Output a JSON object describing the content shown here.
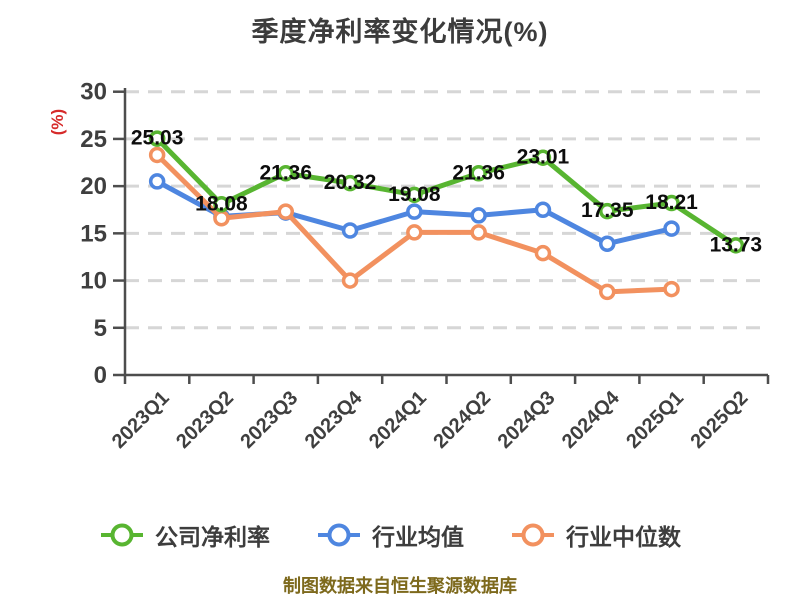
{
  "header": {
    "title": "季度净利率变化情况(%)"
  },
  "y_axis": {
    "unit_label": "(%)",
    "unit_color": "#d62a2a"
  },
  "footer": {
    "text": "制图数据来自恒生聚源数据库",
    "color": "#7d691c"
  },
  "colors": {
    "background": "#ffffff",
    "grid": "#d6d6d6",
    "axis": "#4d4d4d",
    "tick_text": "#3f3f3f",
    "data_label": "#0d0d0d",
    "series_green": "#58b531",
    "series_blue": "#4e86e0",
    "series_orange": "#f2915f"
  },
  "chart_data": {
    "type": "line",
    "title": "季度净利率变化情况(%)",
    "categories": [
      "2023Q1",
      "2023Q2",
      "2023Q3",
      "2023Q4",
      "2024Q1",
      "2024Q2",
      "2024Q3",
      "2024Q4",
      "2025Q1",
      "2025Q2"
    ],
    "series": [
      {
        "name": "公司净利率",
        "color": "#58b531",
        "values": [
          25.03,
          18.08,
          21.36,
          20.32,
          19.08,
          21.36,
          23.01,
          17.35,
          18.21,
          13.73
        ],
        "point_labels": [
          "25.03",
          "18.08",
          "21.36",
          "20.32",
          "19.08",
          "21.36",
          "23.01",
          "17.35",
          "18.21",
          "13.73"
        ]
      },
      {
        "name": "行业均值",
        "color": "#4e86e0",
        "values": [
          20.5,
          16.8,
          17.2,
          15.3,
          17.3,
          16.9,
          17.5,
          13.9,
          15.5
        ]
      },
      {
        "name": "行业中位数",
        "color": "#f2915f",
        "values": [
          23.3,
          16.6,
          17.3,
          10.0,
          15.1,
          15.1,
          12.9,
          8.8,
          9.1
        ]
      }
    ],
    "ylim": [
      0,
      30
    ],
    "yticks": [
      0,
      5,
      10,
      15,
      20,
      25,
      30
    ],
    "grid": "horizontal-dashed-white",
    "marker": "circle-white-fill",
    "legend_position": "bottom",
    "x_label_rotation_deg": 45
  }
}
